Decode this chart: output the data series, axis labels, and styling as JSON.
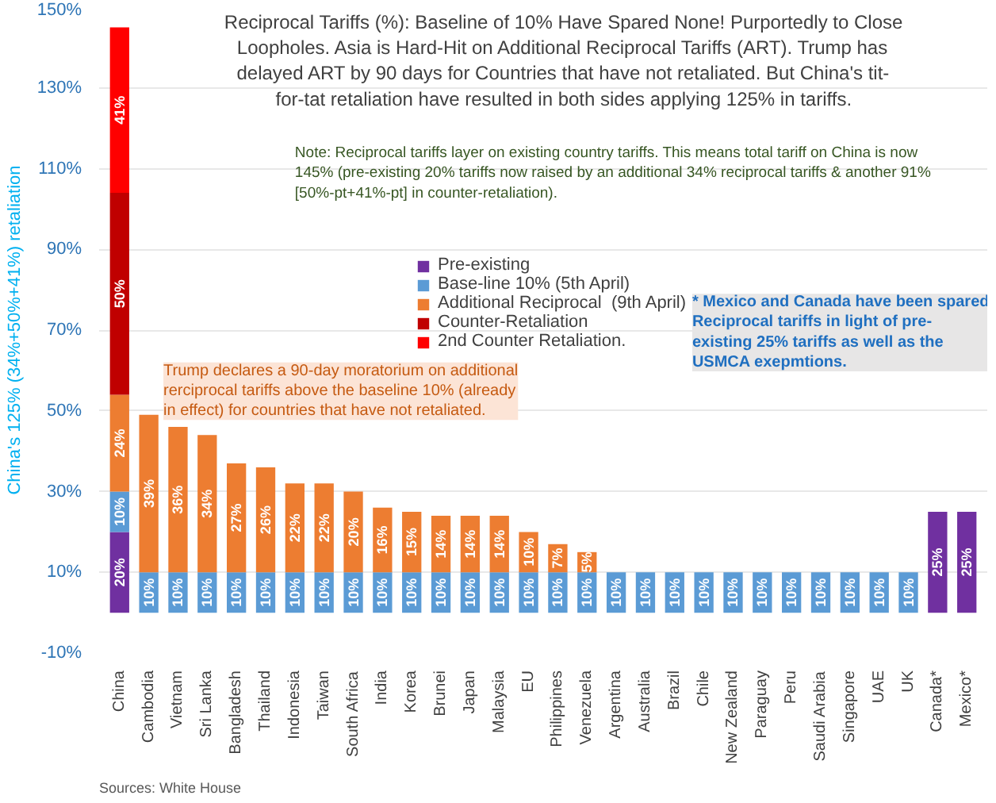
{
  "chart_data": {
    "type": "bar",
    "stacked": true,
    "title": "Reciprocal Tariffs (%): Baseline of 10% Have Spared None! Purportedly to Close Loopholes. Asia is Hard-Hit on Additional Reciprocal Tariffs (ART). Trump has delayed ART by 90 days for Countries that have not retaliated. But China's tit-for-tat retaliation have resulted in both sides applying 125% in tariffs.",
    "ylabel": "China's 125% (34%+50%+41%) retaliation",
    "categories": [
      "China",
      "Cambodia",
      "Vietnam",
      "Sri Lanka",
      "Bangladesh",
      "Thailand",
      "Indonesia",
      "Taiwan",
      "South Africa",
      "India",
      "Korea",
      "Brunei",
      "Japan",
      "Malaysia",
      "EU",
      "Philippines",
      "Venezuela",
      "Argentina",
      "Australia",
      "Brazil",
      "Chile",
      "New Zealand",
      "Paraguay",
      "Peru",
      "Saudi Arabia",
      "Singapore",
      "UAE",
      "UK",
      "Canada*",
      "Mexico*"
    ],
    "series": [
      {
        "name": "Pre-existing",
        "color": "#7030a0",
        "values": [
          20,
          null,
          null,
          null,
          null,
          null,
          null,
          null,
          null,
          null,
          null,
          null,
          null,
          null,
          null,
          null,
          null,
          null,
          null,
          null,
          null,
          null,
          null,
          null,
          null,
          null,
          null,
          null,
          25,
          25
        ],
        "value_labels": [
          "20%",
          null,
          null,
          null,
          null,
          null,
          null,
          null,
          null,
          null,
          null,
          null,
          null,
          null,
          null,
          null,
          null,
          null,
          null,
          null,
          null,
          null,
          null,
          null,
          null,
          null,
          null,
          null,
          "25%",
          "25%"
        ]
      },
      {
        "name": "Base-line 10% (5th April)",
        "color": "#5b9bd5",
        "values": [
          10,
          10,
          10,
          10,
          10,
          10,
          10,
          10,
          10,
          10,
          10,
          10,
          10,
          10,
          10,
          10,
          10,
          10,
          10,
          10,
          10,
          10,
          10,
          10,
          10,
          10,
          10,
          10,
          null,
          null
        ],
        "value_labels": [
          "10%",
          "10%",
          "10%",
          "10%",
          "10%",
          "10%",
          "10%",
          "10%",
          "10%",
          "10%",
          "10%",
          "10%",
          "10%",
          "10%",
          "10%",
          "10%",
          "10%",
          "10%",
          "10%",
          "10%",
          "10%",
          "10%",
          "10%",
          "10%",
          "10%",
          "10%",
          "10%",
          "10%",
          null,
          null
        ]
      },
      {
        "name": "Additional Reciprocal  (9th April)",
        "color": "#ed7d31",
        "values": [
          24,
          39,
          36,
          34,
          27,
          26,
          22,
          22,
          20,
          16,
          15,
          14,
          14,
          14,
          10,
          7,
          5,
          null,
          null,
          null,
          null,
          null,
          null,
          null,
          null,
          null,
          null,
          null,
          null,
          null
        ],
        "value_labels": [
          "24%",
          "39%",
          "36%",
          "34%",
          "27%",
          "26%",
          "22%",
          "22%",
          "20%",
          "16%",
          "15%",
          "14%",
          "14%",
          "14%",
          "10%",
          "7%",
          "5%",
          null,
          null,
          null,
          null,
          null,
          null,
          null,
          null,
          null,
          null,
          null,
          null,
          null
        ]
      },
      {
        "name": "Counter-Retaliation",
        "color": "#c00000",
        "values": [
          50,
          null,
          null,
          null,
          null,
          null,
          null,
          null,
          null,
          null,
          null,
          null,
          null,
          null,
          null,
          null,
          null,
          null,
          null,
          null,
          null,
          null,
          null,
          null,
          null,
          null,
          null,
          null,
          null,
          null
        ],
        "value_labels": [
          "50%",
          null,
          null,
          null,
          null,
          null,
          null,
          null,
          null,
          null,
          null,
          null,
          null,
          null,
          null,
          null,
          null,
          null,
          null,
          null,
          null,
          null,
          null,
          null,
          null,
          null,
          null,
          null,
          null,
          null
        ]
      },
      {
        "name": "2nd Counter Retaliation.",
        "color": "#ff0000",
        "values": [
          41,
          null,
          null,
          null,
          null,
          null,
          null,
          null,
          null,
          null,
          null,
          null,
          null,
          null,
          null,
          null,
          null,
          null,
          null,
          null,
          null,
          null,
          null,
          null,
          null,
          null,
          null,
          null,
          null,
          null
        ],
        "value_labels": [
          "41%",
          null,
          null,
          null,
          null,
          null,
          null,
          null,
          null,
          null,
          null,
          null,
          null,
          null,
          null,
          null,
          null,
          null,
          null,
          null,
          null,
          null,
          null,
          null,
          null,
          null,
          null,
          null,
          null,
          null
        ]
      }
    ],
    "ylim": [
      -10,
      150
    ],
    "yticks": [
      {
        "value": -10,
        "label": "-10%"
      },
      {
        "value": 10,
        "label": "10%"
      },
      {
        "value": 30,
        "label": "30%"
      },
      {
        "value": 50,
        "label": "50%"
      },
      {
        "value": 70,
        "label": "70%"
      },
      {
        "value": 90,
        "label": "90%"
      },
      {
        "value": 110,
        "label": "110%"
      },
      {
        "value": 130,
        "label": "130%"
      },
      {
        "value": 150,
        "label": "150%"
      }
    ],
    "grid": "y",
    "legend": "top",
    "annotations": [
      "Note: Reciprocal tariffs layer on existing country tariffs. This means total tariff on China is now 145% (pre-existing 20% tariffs now raised by an additional 34% reciprocal tariffs & another 91% [50%-pt+41%-pt] in counter-retaliation).",
      "* Mexico and Canada have been spared Reciprocal tariffs in light of pre-existing 25% tariffs as well as the USMCA exepmtions.",
      "Trump declares a 90-day moratorium on additional rerciprocal tariffs above the baseline 10% (already in effect) for countries that have not retaliated.",
      "Sources: White House"
    ]
  }
}
